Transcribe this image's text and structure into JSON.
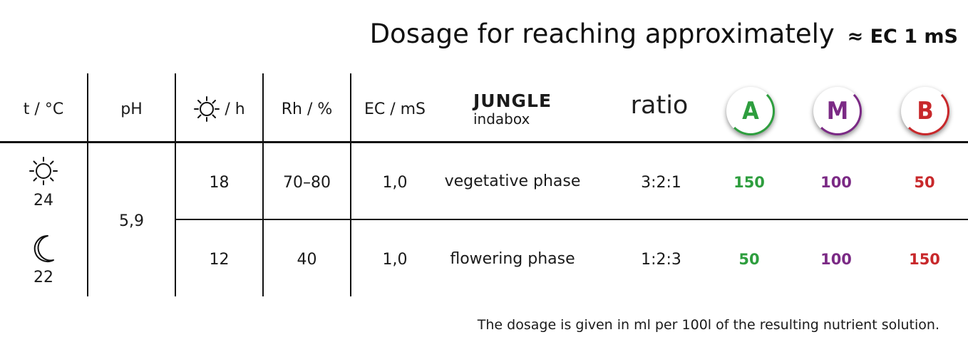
{
  "title": {
    "text": "Dosage for reaching approximately",
    "ec": "≈ EC 1 mS"
  },
  "headers": {
    "temp": "t / °C",
    "ph": "pH",
    "light": "/ h",
    "rh": "Rh / %",
    "ec": "EC / mS",
    "brand": "JUNGLE",
    "brand_sub": "indabox",
    "ratio": "ratio",
    "a": "A",
    "m": "M",
    "b": "B"
  },
  "left": {
    "day_temp": "24",
    "night_temp": "22",
    "ph": "5,9"
  },
  "rows": [
    {
      "hours": "18",
      "rh": "70–80",
      "ec": "1,0",
      "phase": "vegetative phase",
      "ratio": "3:2:1",
      "a": "150",
      "m": "100",
      "b": "50"
    },
    {
      "hours": "12",
      "rh": "40",
      "ec": "1,0",
      "phase": "flowering phase",
      "ratio": "1:2:3",
      "a": "50",
      "m": "100",
      "b": "150"
    }
  ],
  "note": "The dosage is given in ml per 100l of the resulting nutrient solution.",
  "colors": {
    "a": "#2e9e3e",
    "m": "#7b2a85",
    "b": "#c8282b"
  },
  "icons": {
    "light": "sun-icon",
    "day": "sun-icon",
    "night": "moon-icon"
  }
}
